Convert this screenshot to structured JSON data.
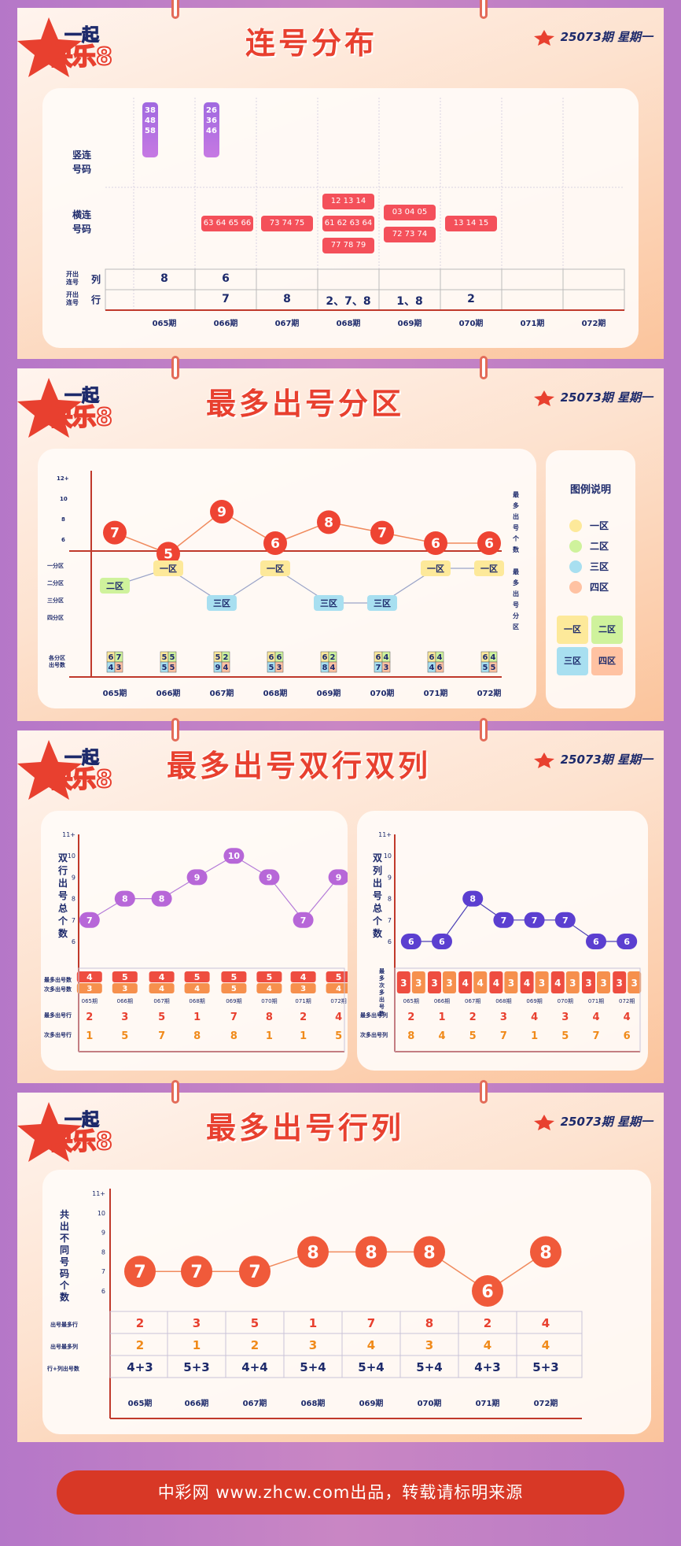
{
  "issue_text": "25073期 星期一",
  "footer": "中彩网 www.zhcw.com出品，转载请标明来源",
  "periods": [
    "065期",
    "066期",
    "067期",
    "068期",
    "069期",
    "070期",
    "071期",
    "072期"
  ],
  "s1": {
    "title": "连号分布",
    "row_labels": {
      "vertical": "竖连\n号码",
      "horizontal": "横连\n号码",
      "col": "开出连号列",
      "row": "开出连号行"
    },
    "col_label_a": "开出\n连号",
    "col_label_b": "列",
    "row_label_a": "开出\n连号",
    "row_label_b": "行",
    "vertical_boxes": [
      [
        "38",
        "48",
        "58"
      ],
      [
        "26",
        "36",
        "46"
      ]
    ],
    "horizontal_boxes": [
      [
        "63 64 65 66"
      ],
      [
        "73 74 75"
      ],
      [
        "12 13 14",
        "61 62 63 64",
        "77 78 79"
      ],
      [
        "03 04 05",
        "72 73 74"
      ],
      [
        "13 14 15"
      ],
      []
    ],
    "col_values": [
      "8",
      "6"
    ],
    "row_values": [
      "7",
      "8",
      "2、7、8",
      "1、8",
      "2"
    ]
  },
  "s2": {
    "title": "最多出号分区",
    "y_ticks": [
      "12+",
      "10",
      "8",
      "6"
    ],
    "zone_ticks": [
      "一分区",
      "二分区",
      "三分区",
      "四分区"
    ],
    "side_top": "最多出号个数",
    "side_bottom": "最多出号分区",
    "counts": [
      7,
      5,
      9,
      6,
      8,
      7,
      6,
      6
    ],
    "zones": [
      "二区",
      "一区",
      "三区",
      "一区",
      "三区",
      "三区",
      "一区",
      "一区"
    ],
    "zone_levels": [
      2,
      1,
      3,
      1,
      3,
      3,
      1,
      1
    ],
    "bottom_label": "各分区\n出号数",
    "grids": [
      [
        "6",
        "7",
        "4",
        "3"
      ],
      [
        "5",
        "5",
        "5",
        "5"
      ],
      [
        "5",
        "2",
        "9",
        "4"
      ],
      [
        "6",
        "6",
        "5",
        "3"
      ],
      [
        "6",
        "2",
        "8",
        "4"
      ],
      [
        "6",
        "4",
        "7",
        "3"
      ],
      [
        "6",
        "4",
        "4",
        "6"
      ],
      [
        "6",
        "4",
        "5",
        "5"
      ]
    ],
    "legend_title": "图例说明",
    "legend_items": [
      "一区",
      "二区",
      "三区",
      "四区"
    ],
    "legend_colors": [
      "#fde99a",
      "#cff29c",
      "#a8dff0",
      "#ffc2a2"
    ]
  },
  "s3": {
    "title": "最多出号双行双列",
    "left": {
      "side": "双行出号总个数",
      "y_ticks": [
        "11+",
        "10",
        "9",
        "8",
        "7",
        "6"
      ],
      "values": [
        7,
        8,
        8,
        9,
        10,
        9,
        7,
        9
      ],
      "most_label": "最多出号数",
      "second_label": "次多出号数",
      "most": [
        "4",
        "5",
        "4",
        "5",
        "5",
        "5",
        "4",
        "5"
      ],
      "second": [
        "3",
        "3",
        "4",
        "4",
        "5",
        "4",
        "3",
        "4"
      ],
      "most_row_label": "最多出号行",
      "second_row_label": "次多出号行",
      "most_rows": [
        "2",
        "3",
        "5",
        "1",
        "7",
        "8",
        "2",
        "4"
      ],
      "second_rows": [
        "1",
        "5",
        "7",
        "8",
        "8",
        "1",
        "1",
        "5"
      ]
    },
    "right": {
      "side": "双列出号总个数",
      "y_ticks": [
        "11+",
        "10",
        "9",
        "8",
        "7",
        "6"
      ],
      "values": [
        6,
        6,
        8,
        7,
        7,
        7,
        6,
        6
      ],
      "side2": "最多次多出号数",
      "pairs": [
        [
          "3",
          "3"
        ],
        [
          "3",
          "3"
        ],
        [
          "4",
          "4"
        ],
        [
          "4",
          "3"
        ],
        [
          "4",
          "3"
        ],
        [
          "4",
          "3"
        ],
        [
          "3",
          "3"
        ],
        [
          "3",
          "3"
        ]
      ],
      "most_col_label": "最多出号列",
      "second_col_label": "次多出号列",
      "most_cols": [
        "2",
        "1",
        "2",
        "3",
        "4",
        "3",
        "4",
        "4"
      ],
      "second_cols": [
        "8",
        "4",
        "5",
        "7",
        "1",
        "5",
        "7",
        "6"
      ]
    }
  },
  "s4": {
    "title": "最多出号行列",
    "side": "共出不同号码个数",
    "y_ticks": [
      "11+",
      "10",
      "9",
      "8",
      "7",
      "6"
    ],
    "values": [
      7,
      7,
      7,
      8,
      8,
      8,
      6,
      8
    ],
    "row_label": "出号最多行",
    "col_label": "出号最多列",
    "sum_label": "行+列出号数",
    "rows": [
      "2",
      "3",
      "5",
      "1",
      "7",
      "8",
      "2",
      "4"
    ],
    "cols": [
      "2",
      "1",
      "2",
      "3",
      "4",
      "3",
      "4",
      "4"
    ],
    "sums": [
      "4+3",
      "5+3",
      "4+4",
      "5+4",
      "5+4",
      "5+4",
      "4+3",
      "5+3"
    ]
  }
}
